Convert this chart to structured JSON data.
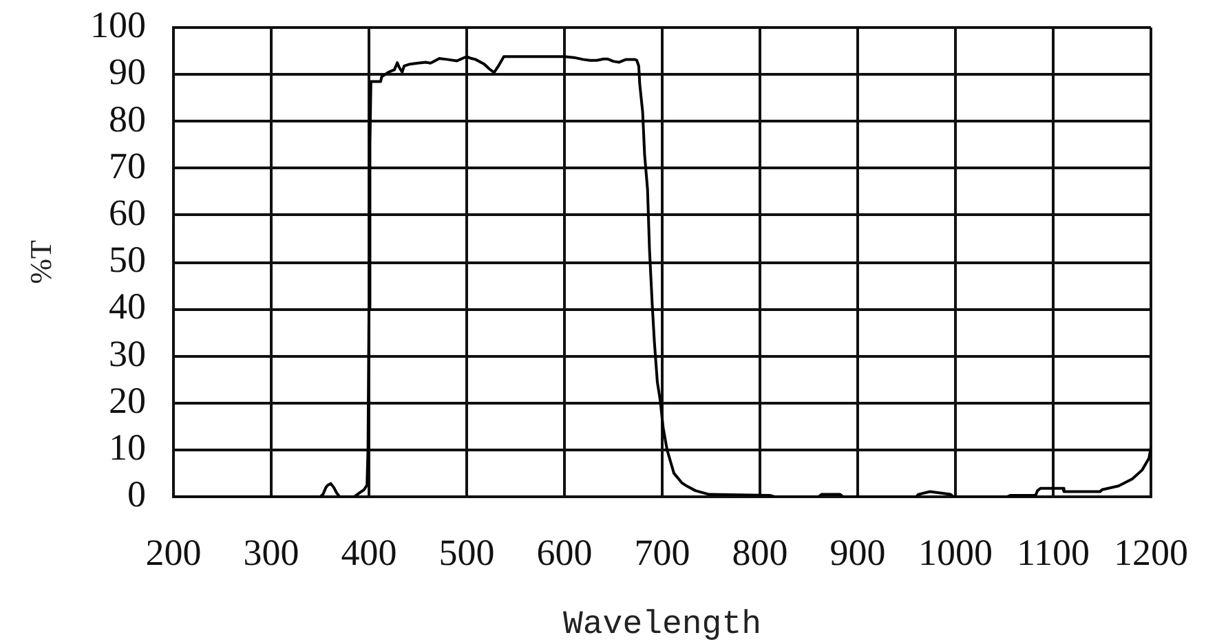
{
  "chart_data": {
    "type": "line",
    "xlabel": "Wavelength",
    "ylabel": "%T",
    "x": [
      200,
      350,
      353,
      356,
      358,
      361,
      364,
      367,
      370,
      385,
      390,
      395,
      398,
      399,
      400,
      401,
      402,
      412,
      413,
      420,
      426,
      429,
      431,
      434,
      436,
      442,
      450,
      458,
      463,
      472,
      480,
      490,
      500,
      505,
      509,
      518,
      523,
      528,
      533,
      538,
      560,
      600,
      610,
      619,
      626,
      633,
      640,
      644,
      650,
      656,
      663,
      672,
      674,
      676,
      677,
      680,
      682,
      685,
      687,
      690,
      692,
      695,
      698,
      701,
      705,
      712,
      720,
      725,
      734,
      748,
      810,
      815,
      860,
      863,
      882,
      885,
      960,
      962,
      974,
      995,
      998,
      1053,
      1056,
      1082,
      1084,
      1087,
      1110,
      1111,
      1148,
      1150,
      1167,
      1181,
      1191,
      1198,
      1200
    ],
    "values": [
      0,
      0,
      0.5,
      2,
      2.5,
      2.8,
      2,
      0.8,
      0,
      0,
      0.8,
      1.5,
      2.5,
      10,
      40,
      75,
      88.5,
      88.5,
      89.5,
      90.5,
      91,
      92.5,
      91.5,
      90.5,
      91.8,
      92.2,
      92.4,
      92.6,
      92.4,
      93.4,
      93.2,
      92.9,
      93.8,
      93.4,
      93.2,
      92.2,
      91.2,
      90.4,
      92,
      93.8,
      93.8,
      93.8,
      93.6,
      93.2,
      93,
      93,
      93.3,
      93.3,
      92.8,
      92.6,
      93.2,
      93.2,
      93,
      91.8,
      88,
      82,
      72.9,
      65.5,
      52.7,
      40.2,
      33,
      24.5,
      20.5,
      14.7,
      10,
      5,
      3,
      2.3,
      1.3,
      0.5,
      0.3,
      0,
      0,
      0.5,
      0.5,
      0,
      0,
      0.5,
      1.1,
      0.5,
      0,
      0,
      0.3,
      0.3,
      1.3,
      1.8,
      1.8,
      1.1,
      1.1,
      1.5,
      2.3,
      3.8,
      5.7,
      8.2,
      10.5
    ],
    "color": "#000000",
    "xlim": [
      200,
      1200
    ],
    "xticks": [
      200,
      300,
      400,
      500,
      600,
      700,
      800,
      900,
      1000,
      1100,
      1200
    ],
    "ylim": [
      0,
      100
    ],
    "yticks": [
      0,
      10,
      20,
      30,
      40,
      50,
      60,
      70,
      80,
      90,
      100
    ],
    "grid": true,
    "legend": false,
    "marker": "none",
    "line_style": "solid"
  }
}
